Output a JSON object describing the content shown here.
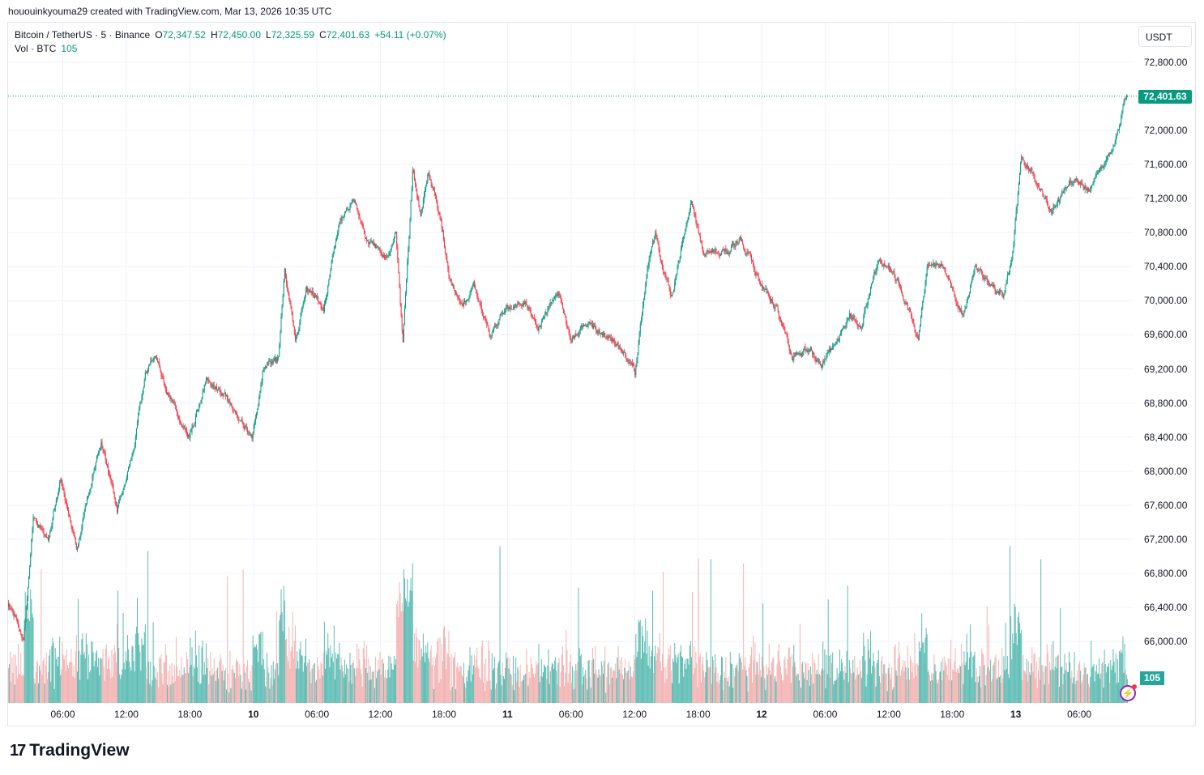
{
  "credit": "hououinkyouma29 created with TradingView.com, Mar 13, 2026 10:35 UTC",
  "legend": {
    "symbol": "Bitcoin / TetherUS · 5 · Binance",
    "o_label": "O",
    "o": "72,347.52",
    "h_label": "H",
    "h": "72,450.00",
    "l_label": "L",
    "l": "72,325.59",
    "c_label": "C",
    "c": "72,401.63",
    "change": "+54.11 (+0.07%)",
    "vol_label": "Vol · BTC",
    "vol": "105"
  },
  "currency_button": "USDT",
  "last_price_label": "72,401.63",
  "volume_badge": "105",
  "brand": "TradingView",
  "colors": {
    "up": "#089981",
    "down": "#f23645",
    "vol_up": "#26a69a",
    "vol_down": "#ef9a9a",
    "grid": "#f0f3fa",
    "alert": "#9c27b0"
  },
  "icons": {
    "alert": "lightning-alert-icon",
    "logo": "tradingview-logo-icon"
  },
  "chart_data": {
    "type": "candlestick",
    "interval": "5",
    "x_range": [
      "2026-03-09 00:50",
      "2026-03-13 10:35"
    ],
    "ylim": [
      65280,
      73245
    ],
    "y_ticks": [
      "72,800.00",
      "72,000.00",
      "71,600.00",
      "71,200.00",
      "70,800.00",
      "70,400.00",
      "70,000.00",
      "69,600.00",
      "69,200.00",
      "68,800.00",
      "68,400.00",
      "68,000.00",
      "67,600.00",
      "67,200.00",
      "66,800.00",
      "66,400.00",
      "66,000.00"
    ],
    "y_tick_values": [
      72800,
      72000,
      71600,
      71200,
      70800,
      70400,
      70000,
      69600,
      69200,
      68800,
      68400,
      68000,
      67600,
      67200,
      66800,
      66400,
      66000
    ],
    "x_ticks": [
      {
        "label": "06:00",
        "time": "2026-03-09 06:00",
        "bold": false
      },
      {
        "label": "12:00",
        "time": "2026-03-09 12:00",
        "bold": false
      },
      {
        "label": "18:00",
        "time": "2026-03-09 18:00",
        "bold": false
      },
      {
        "label": "10",
        "time": "2026-03-10 00:00",
        "bold": true
      },
      {
        "label": "06:00",
        "time": "2026-03-10 06:00",
        "bold": false
      },
      {
        "label": "12:00",
        "time": "2026-03-10 12:00",
        "bold": false
      },
      {
        "label": "18:00",
        "time": "2026-03-10 18:00",
        "bold": false
      },
      {
        "label": "11",
        "time": "2026-03-11 00:00",
        "bold": true
      },
      {
        "label": "06:00",
        "time": "2026-03-11 06:00",
        "bold": false
      },
      {
        "label": "12:00",
        "time": "2026-03-11 12:00",
        "bold": false
      },
      {
        "label": "18:00",
        "time": "2026-03-11 18:00",
        "bold": false
      },
      {
        "label": "12",
        "time": "2026-03-12 00:00",
        "bold": true
      },
      {
        "label": "06:00",
        "time": "2026-03-12 06:00",
        "bold": false
      },
      {
        "label": "12:00",
        "time": "2026-03-12 12:00",
        "bold": false
      },
      {
        "label": "18:00",
        "time": "2026-03-12 18:00",
        "bold": false
      },
      {
        "label": "13",
        "time": "2026-03-13 00:00",
        "bold": true
      },
      {
        "label": "06:00",
        "time": "2026-03-13 06:00",
        "bold": false
      }
    ],
    "last_price": 72401.63,
    "last_volume": 105,
    "price_path": [
      [
        "2026-03-09 00:50",
        66450
      ],
      [
        "2026-03-09 01:15",
        66400
      ],
      [
        "2026-03-09 02:20",
        66020
      ],
      [
        "2026-03-09 03:15",
        67450
      ],
      [
        "2026-03-09 04:40",
        67160
      ],
      [
        "2026-03-09 05:50",
        67920
      ],
      [
        "2026-03-09 07:20",
        67070
      ],
      [
        "2026-03-09 08:30",
        67730
      ],
      [
        "2026-03-09 09:40",
        68350
      ],
      [
        "2026-03-09 11:10",
        67540
      ],
      [
        "2026-03-09 12:40",
        68200
      ],
      [
        "2026-03-09 13:50",
        69160
      ],
      [
        "2026-03-09 14:45",
        69350
      ],
      [
        "2026-03-09 16:10",
        68870
      ],
      [
        "2026-03-09 18:00",
        68400
      ],
      [
        "2026-03-09 19:35",
        69060
      ],
      [
        "2026-03-09 21:30",
        68870
      ],
      [
        "2026-03-09 23:55",
        68400
      ],
      [
        "2026-03-10 00:55",
        69160
      ],
      [
        "2026-03-10 02:25",
        69350
      ],
      [
        "2026-03-10 03:00",
        70390
      ],
      [
        "2026-03-10 04:00",
        69540
      ],
      [
        "2026-03-10 05:05",
        70200
      ],
      [
        "2026-03-10 06:40",
        69870
      ],
      [
        "2026-03-10 08:10",
        70960
      ],
      [
        "2026-03-10 09:35",
        71150
      ],
      [
        "2026-03-10 10:50",
        70680
      ],
      [
        "2026-03-10 12:45",
        70490
      ],
      [
        "2026-03-10 13:30",
        70770
      ],
      [
        "2026-03-10 14:10",
        69540
      ],
      [
        "2026-03-10 15:05",
        71530
      ],
      [
        "2026-03-10 15:50",
        71060
      ],
      [
        "2026-03-10 16:35",
        71530
      ],
      [
        "2026-03-10 17:45",
        70960
      ],
      [
        "2026-03-10 18:30",
        70300
      ],
      [
        "2026-03-10 19:40",
        69920
      ],
      [
        "2026-03-10 20:50",
        70200
      ],
      [
        "2026-03-10 22:20",
        69590
      ],
      [
        "2026-03-11 00:15",
        69920
      ],
      [
        "2026-03-11 01:45",
        70010
      ],
      [
        "2026-03-11 02:55",
        69640
      ],
      [
        "2026-03-11 04:50",
        70110
      ],
      [
        "2026-03-11 06:00",
        69540
      ],
      [
        "2026-03-11 07:30",
        69730
      ],
      [
        "2026-03-11 10:10",
        69540
      ],
      [
        "2026-03-11 12:05",
        69160
      ],
      [
        "2026-03-11 13:15",
        70390
      ],
      [
        "2026-03-11 14:00",
        70770
      ],
      [
        "2026-03-11 15:30",
        70010
      ],
      [
        "2026-03-11 16:40",
        70770
      ],
      [
        "2026-03-11 17:25",
        71150
      ],
      [
        "2026-03-11 18:35",
        70580
      ],
      [
        "2026-03-11 20:55",
        70580
      ],
      [
        "2026-03-11 22:00",
        70770
      ],
      [
        "2026-03-11 23:35",
        70300
      ],
      [
        "2026-03-12 01:25",
        69920
      ],
      [
        "2026-03-12 03:00",
        69350
      ],
      [
        "2026-03-12 04:30",
        69440
      ],
      [
        "2026-03-12 05:40",
        69250
      ],
      [
        "2026-03-12 07:15",
        69540
      ],
      [
        "2026-03-12 08:20",
        69830
      ],
      [
        "2026-03-12 09:30",
        69730
      ],
      [
        "2026-03-12 11:05",
        70490
      ],
      [
        "2026-03-12 12:10",
        70390
      ],
      [
        "2026-03-12 13:20",
        70110
      ],
      [
        "2026-03-12 14:50",
        69540
      ],
      [
        "2026-03-12 15:40",
        70390
      ],
      [
        "2026-03-12 17:10",
        70390
      ],
      [
        "2026-03-12 19:00",
        69830
      ],
      [
        "2026-03-12 20:15",
        70390
      ],
      [
        "2026-03-12 21:20",
        70200
      ],
      [
        "2026-03-12 22:50",
        70060
      ],
      [
        "2026-03-12 23:40",
        70490
      ],
      [
        "2026-03-13 00:35",
        71720
      ],
      [
        "2026-03-13 01:35",
        71530
      ],
      [
        "2026-03-13 03:25",
        71060
      ],
      [
        "2026-03-13 05:45",
        71480
      ],
      [
        "2026-03-13 06:55",
        71300
      ],
      [
        "2026-03-13 08:00",
        71530
      ],
      [
        "2026-03-13 09:15",
        71820
      ],
      [
        "2026-03-13 10:30",
        72401.63
      ]
    ]
  }
}
